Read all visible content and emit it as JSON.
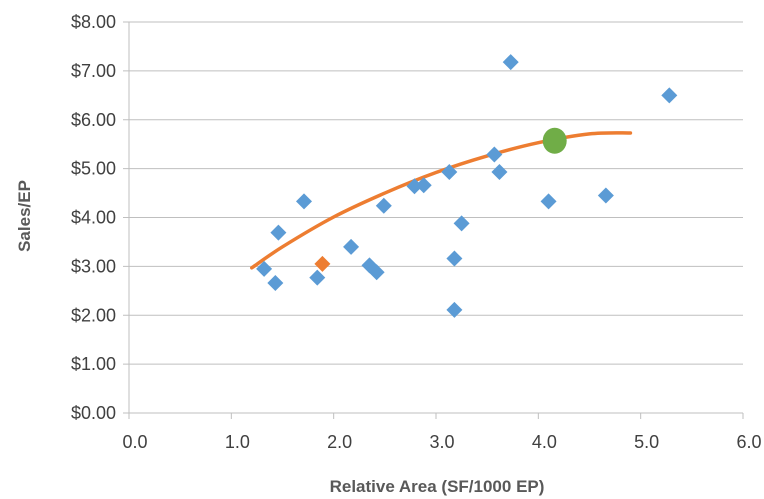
{
  "chart_data": {
    "type": "scatter",
    "title": "",
    "xlabel": "Relative Area (SF/1000 EP)",
    "ylabel": "Sales/EP",
    "xlim": [
      0,
      6
    ],
    "ylim": [
      0,
      8
    ],
    "x_ticks": [
      "0.0",
      "1.0",
      "2.0",
      "3.0",
      "4.0",
      "5.0",
      "6.0"
    ],
    "y_ticks": [
      "$0.00",
      "$1.00",
      "$2.00",
      "$3.00",
      "$4.00",
      "$5.00",
      "$6.00",
      "$7.00",
      "$8.00"
    ],
    "grid": "horizontal",
    "legend": "none",
    "series": [
      {
        "marker": "diamond",
        "color": "#5B9BD5",
        "points": [
          [
            1.32,
            2.95
          ],
          [
            1.43,
            2.66
          ],
          [
            1.46,
            3.69
          ],
          [
            1.71,
            4.33
          ],
          [
            1.84,
            2.77
          ],
          [
            2.17,
            3.4
          ],
          [
            2.35,
            3.02
          ],
          [
            2.42,
            2.88
          ],
          [
            2.49,
            4.24
          ],
          [
            2.79,
            4.64
          ],
          [
            2.88,
            4.66
          ],
          [
            3.13,
            4.93
          ],
          [
            3.18,
            3.16
          ],
          [
            3.18,
            2.11
          ],
          [
            3.25,
            3.88
          ],
          [
            3.57,
            5.29
          ],
          [
            3.62,
            4.93
          ],
          [
            3.73,
            7.18
          ],
          [
            4.1,
            4.33
          ],
          [
            4.66,
            4.45
          ],
          [
            5.28,
            6.5
          ]
        ]
      },
      {
        "marker": "diamond",
        "color": "#ED7D31",
        "points": [
          [
            1.89,
            3.05
          ]
        ]
      },
      {
        "marker": "circle",
        "color": "#70AD47",
        "points": [
          [
            4.16,
            5.57
          ]
        ]
      }
    ],
    "trendline": {
      "color": "#ED7D31",
      "points": [
        [
          1.2,
          2.97
        ],
        [
          1.5,
          3.4
        ],
        [
          2.0,
          4.01
        ],
        [
          2.5,
          4.5
        ],
        [
          3.0,
          4.92
        ],
        [
          3.5,
          5.26
        ],
        [
          4.0,
          5.53
        ],
        [
          4.5,
          5.71
        ],
        [
          4.9,
          5.73
        ]
      ]
    }
  }
}
